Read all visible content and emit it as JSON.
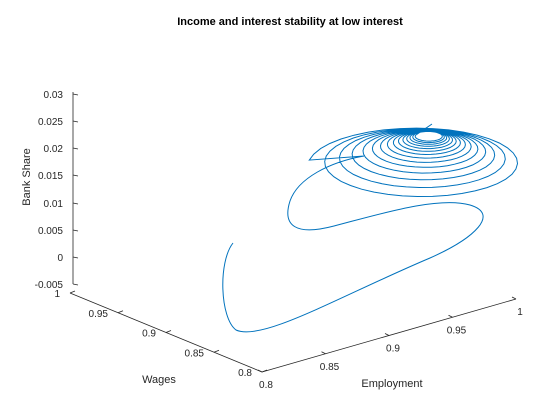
{
  "chart_data": {
    "type": "line3d",
    "title": "Income and interest stability at low interest",
    "xlabel": "Employment",
    "ylabel": "Wages",
    "zlabel": "Bank Share",
    "xlim": [
      0.8,
      1.0
    ],
    "ylim": [
      0.8,
      1.0
    ],
    "zlim": [
      -0.005,
      0.03
    ],
    "xticks": [
      "0.8",
      "0.85",
      "0.9",
      "0.95",
      "1"
    ],
    "yticks": [
      "0.8",
      "0.85",
      "0.9",
      "0.95",
      "1"
    ],
    "zticks": [
      "-0.005",
      "0",
      "0.005",
      "0.01",
      "0.015",
      "0.02",
      "0.025",
      "0.03"
    ],
    "grid": false,
    "line_color": "#0072BD",
    "trajectory": {
      "start": {
        "x": 0.8,
        "y": 0.91,
        "z": 0.003
      },
      "end": {
        "x": 0.975,
        "y": 0.97,
        "z": 0.024
      },
      "loops": 14,
      "description": "spiral converging to fixed point"
    }
  }
}
